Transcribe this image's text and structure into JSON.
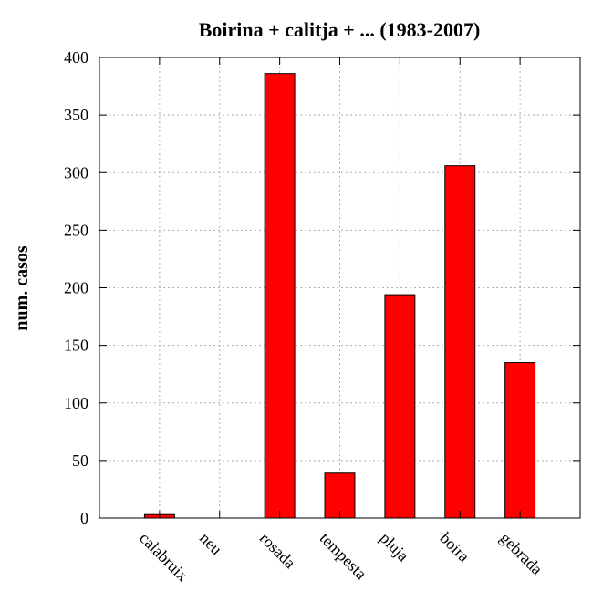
{
  "chart_data": {
    "type": "bar",
    "title": "Boirina + calitja + ... (1983-2007)",
    "xlabel": "",
    "ylabel": "num. casos",
    "categories": [
      "calabruix",
      "neu",
      "rosada",
      "tempesta",
      "pluja",
      "boira",
      "gebrada"
    ],
    "values": [
      3,
      0,
      386,
      39,
      194,
      306,
      135
    ],
    "ylim": [
      0,
      400
    ],
    "yticks": [
      "0",
      "50",
      "100",
      "150",
      "200",
      "250",
      "300",
      "350",
      "400"
    ],
    "grid": true,
    "legend": "none",
    "bar_color": "#ff0000"
  }
}
